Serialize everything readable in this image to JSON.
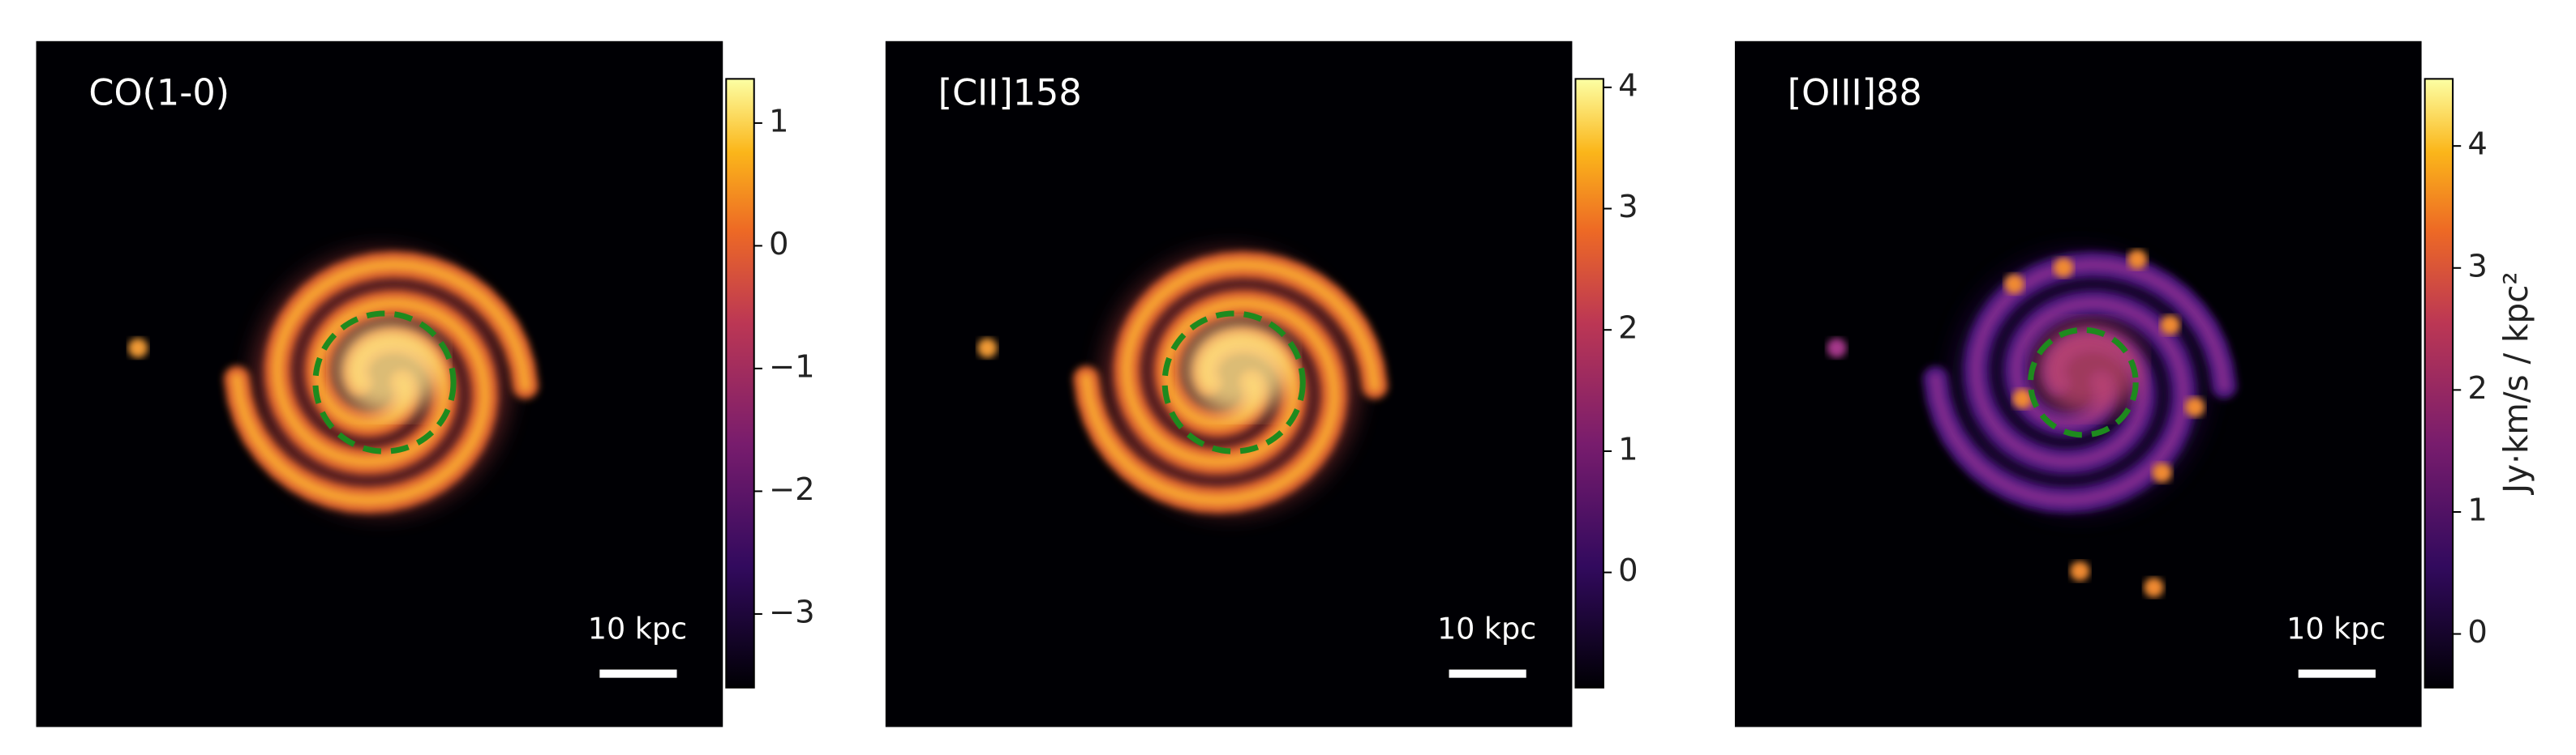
{
  "chart_data": [
    {
      "type": "image",
      "label": "CO(1-0)",
      "scale_bar": "10 kpc",
      "ylim": [
        -3.6,
        1.36
      ],
      "yticks": [
        {
          "value": -3,
          "label": "−3"
        },
        {
          "value": -2,
          "label": "−2"
        },
        {
          "value": -1,
          "label": "−1"
        },
        0,
        1
      ]
    },
    {
      "type": "image",
      "label": "[CII]158",
      "scale_bar": "10 kpc",
      "ylim": [
        -0.95,
        4.07
      ],
      "yticks": [
        0,
        1,
        2,
        3,
        4
      ]
    },
    {
      "type": "image",
      "label": "[OIII]88",
      "scale_bar": "10 kpc",
      "ylim": [
        -0.44,
        4.55
      ],
      "yticks": [
        0,
        1,
        2,
        3,
        4
      ],
      "colorbar_label": "Jy·km/s / kpc²"
    }
  ]
}
